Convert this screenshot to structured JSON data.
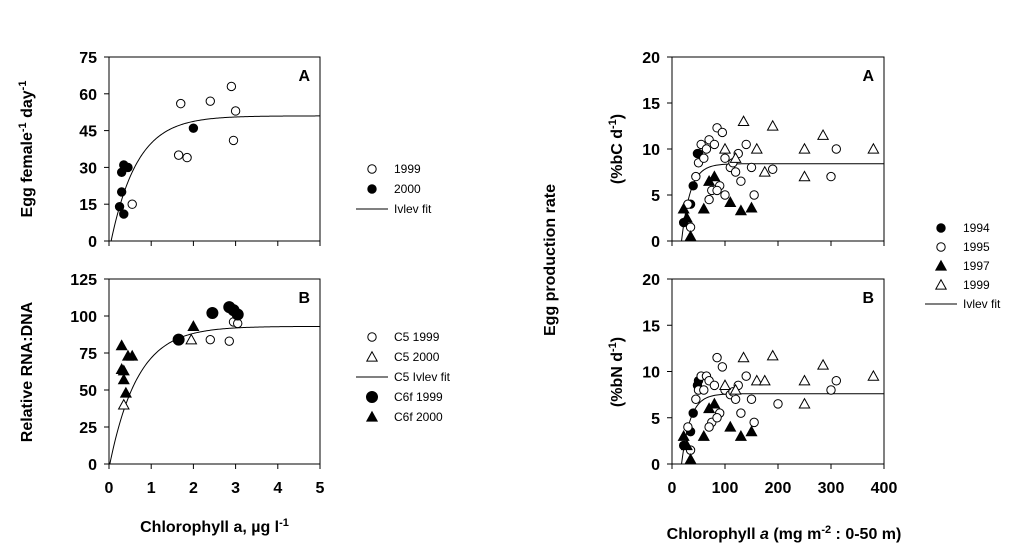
{
  "chart_data": [
    {
      "type": "scatter",
      "panel": "A",
      "ylabel_html": [
        "Egg female",
        "-1",
        " day",
        "-1"
      ],
      "xlim": [
        0,
        5
      ],
      "ylim": [
        0,
        75
      ],
      "yticks": [
        0,
        15,
        30,
        45,
        60,
        75
      ],
      "xticks": [],
      "series": [
        {
          "name": "1999",
          "marker": "circle-open",
          "x": [
            0.55,
            1.7,
            1.85,
            2.4,
            2.9,
            3.0,
            1.65,
            2.95
          ],
          "y": [
            15,
            56,
            34,
            57,
            63,
            53,
            35,
            41
          ]
        },
        {
          "name": "2000",
          "marker": "circle-filled",
          "x": [
            0.25,
            0.3,
            0.3,
            0.35,
            0.35,
            0.45,
            2.0
          ],
          "y": [
            14,
            20,
            28,
            31,
            11,
            30,
            46
          ]
        }
      ],
      "fit": {
        "name": "Ivlev fit",
        "max": 51,
        "k": 1.6,
        "x0": 0.05
      }
    },
    {
      "type": "scatter",
      "panel": "B",
      "ylabel": "Relative RNA:DNA",
      "xlabel_html": [
        "Chlorophyll a, µg l",
        "-1"
      ],
      "xlim": [
        0,
        5
      ],
      "ylim": [
        0,
        125
      ],
      "yticks": [
        0,
        25,
        50,
        75,
        100,
        125
      ],
      "xticks": [
        0,
        1,
        2,
        3,
        4,
        5
      ],
      "series": [
        {
          "name": "C5 1999",
          "marker": "circle-open",
          "x": [
            2.4,
            2.85,
            2.95,
            3.05
          ],
          "y": [
            84,
            83,
            96,
            95
          ]
        },
        {
          "name": "C5 2000",
          "marker": "triangle-open",
          "x": [
            0.35,
            1.95
          ],
          "y": [
            40,
            84
          ]
        },
        {
          "name": "C6f 1999",
          "marker": "circle-filled-large",
          "x": [
            1.65,
            2.45,
            2.85,
            2.95,
            3.05
          ],
          "y": [
            84,
            102,
            106,
            104,
            101
          ]
        },
        {
          "name": "C6f 2000",
          "marker": "triangle-filled",
          "x": [
            0.3,
            0.3,
            0.35,
            0.4,
            0.45,
            0.55,
            0.35,
            2.0
          ],
          "y": [
            80,
            64,
            57,
            48,
            73,
            73,
            63,
            93
          ]
        }
      ],
      "fit": {
        "name": "C5 Ivlev fit",
        "max": 93,
        "k": 1.5,
        "x0": 0.02
      }
    },
    {
      "type": "scatter",
      "panel": "A",
      "ylabel_html": [
        "(%bC d",
        "-1",
        ")"
      ],
      "xlim": [
        0,
        400
      ],
      "ylim": [
        0,
        20
      ],
      "yticks": [
        0,
        5,
        10,
        15,
        20
      ],
      "xticks": [],
      "series": [
        {
          "name": "1994",
          "marker": "circle-filled",
          "x": [
            22,
            35,
            40,
            48,
            50
          ],
          "y": [
            2.0,
            4.0,
            6.0,
            9.5,
            9.5
          ]
        },
        {
          "name": "1995",
          "marker": "circle-open",
          "x": [
            30,
            35,
            45,
            50,
            55,
            60,
            65,
            70,
            75,
            80,
            85,
            90,
            95,
            100,
            110,
            120,
            125,
            130,
            140,
            150,
            155,
            190,
            300,
            310,
            70,
            85,
            100,
            115
          ],
          "y": [
            4.0,
            1.5,
            7.0,
            8.5,
            10.5,
            9.0,
            10.0,
            11.0,
            5.5,
            10.5,
            12.3,
            6.0,
            11.8,
            9.0,
            8.0,
            7.5,
            9.5,
            6.5,
            10.5,
            8.0,
            5.0,
            7.8,
            7.0,
            10.0,
            4.5,
            5.5,
            5.0,
            8.5
          ]
        },
        {
          "name": "1997",
          "marker": "triangle-filled",
          "x": [
            22,
            28,
            35,
            60,
            70,
            80,
            110,
            130,
            150
          ],
          "y": [
            3.5,
            2.5,
            0.5,
            3.5,
            6.5,
            7.0,
            4.2,
            3.3,
            3.6
          ]
        },
        {
          "name": "1999",
          "marker": "triangle-open",
          "x": [
            100,
            120,
            135,
            160,
            190,
            250,
            250,
            285,
            380,
            175
          ],
          "y": [
            10.0,
            9.0,
            13.0,
            10.0,
            12.5,
            10.0,
            7.0,
            11.5,
            10.0,
            7.5
          ]
        }
      ],
      "fit": {
        "name": "Ivlev fit",
        "max": 8.4,
        "k": 0.06,
        "x0": 18
      }
    },
    {
      "type": "scatter",
      "panel": "B",
      "ylabel_html": [
        "(%bN d",
        "-1",
        ")"
      ],
      "xlabel_html": [
        "Chlorophyll ",
        "a",
        " (mg m",
        "-2",
        " : 0-50 m)"
      ],
      "xlim": [
        0,
        400
      ],
      "ylim": [
        0,
        20
      ],
      "yticks": [
        0,
        5,
        10,
        15,
        20
      ],
      "xticks": [
        0,
        100,
        200,
        300,
        400
      ],
      "series": [
        {
          "name": "1994",
          "marker": "circle-filled",
          "x": [
            22,
            35,
            40,
            48,
            50
          ],
          "y": [
            2.0,
            3.5,
            5.5,
            8.5,
            9.0
          ]
        },
        {
          "name": "1995",
          "marker": "circle-open",
          "x": [
            30,
            35,
            45,
            50,
            55,
            60,
            65,
            70,
            75,
            80,
            85,
            90,
            95,
            100,
            110,
            120,
            125,
            130,
            140,
            150,
            155,
            200,
            300,
            310,
            70,
            85,
            115
          ],
          "y": [
            4.0,
            1.5,
            7.0,
            8.0,
            9.5,
            8.0,
            9.5,
            9.0,
            4.5,
            8.5,
            11.5,
            5.5,
            10.5,
            8.0,
            7.5,
            7.0,
            8.5,
            5.5,
            9.5,
            7.0,
            4.5,
            6.5,
            8.0,
            9.0,
            4.0,
            5.0,
            7.8
          ]
        },
        {
          "name": "1997",
          "marker": "triangle-filled",
          "x": [
            22,
            28,
            35,
            60,
            70,
            80,
            110,
            130,
            150
          ],
          "y": [
            3.0,
            2.0,
            0.5,
            3.0,
            6.0,
            6.5,
            4.0,
            3.0,
            3.5
          ]
        },
        {
          "name": "1999",
          "marker": "triangle-open",
          "x": [
            100,
            120,
            135,
            160,
            190,
            250,
            250,
            285,
            380,
            175
          ],
          "y": [
            8.5,
            8.0,
            11.5,
            9.0,
            11.7,
            9.0,
            6.5,
            10.7,
            9.5,
            9.0
          ]
        }
      ],
      "fit": {
        "name": "Ivlev fit",
        "max": 7.6,
        "k": 0.06,
        "x0": 18
      }
    }
  ],
  "shared_ylabel_right": "Egg production rate",
  "legends": {
    "left_top": [
      {
        "label": "1999",
        "marker": "circle-open"
      },
      {
        "label": "2000",
        "marker": "circle-filled"
      },
      {
        "label": "Ivlev fit",
        "marker": "line"
      }
    ],
    "left_bottom": [
      {
        "label": "C5 1999",
        "marker": "circle-open"
      },
      {
        "label": "C5 2000",
        "marker": "triangle-open"
      },
      {
        "label": "C5 Ivlev fit",
        "marker": "line"
      },
      {
        "label": "C6f 1999",
        "marker": "circle-filled-large"
      },
      {
        "label": "C6f 2000",
        "marker": "triangle-filled"
      }
    ],
    "right": [
      {
        "label": "1994",
        "marker": "circle-filled"
      },
      {
        "label": "1995",
        "marker": "circle-open"
      },
      {
        "label": "1997",
        "marker": "triangle-filled"
      },
      {
        "label": "1999",
        "marker": "triangle-open"
      },
      {
        "label": "Ivlev fit",
        "marker": "line"
      }
    ]
  }
}
